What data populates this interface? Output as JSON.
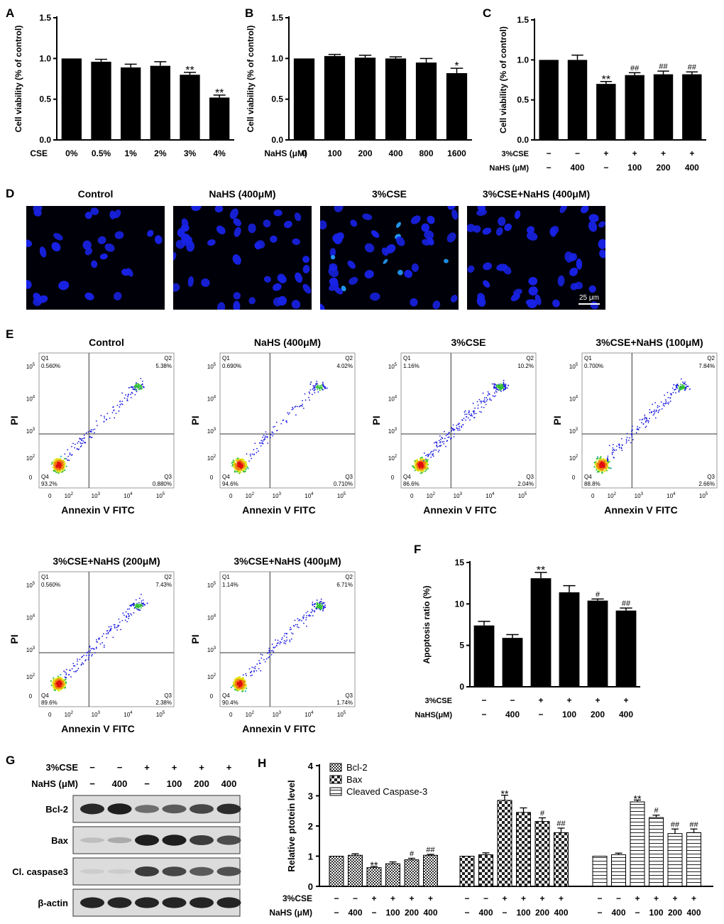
{
  "panel_labels": [
    "A",
    "B",
    "C",
    "D",
    "E",
    "F",
    "G",
    "H"
  ],
  "chart_data": [
    {
      "panel": "A",
      "type": "bar",
      "ylabel": "Cell viability (% of control)",
      "xrow_label": "CSE",
      "categories": [
        "0%",
        "0.5%",
        "1%",
        "2%",
        "3%",
        "4%"
      ],
      "values": [
        1.0,
        0.96,
        0.89,
        0.91,
        0.8,
        0.52
      ],
      "errors": [
        0.0,
        0.03,
        0.04,
        0.05,
        0.03,
        0.03
      ],
      "annotations": [
        "",
        "",
        "",
        "",
        "**",
        "**"
      ],
      "ylim": [
        0,
        1.5
      ],
      "yticks": [
        "0.0",
        "0.5",
        "1.0",
        "1.5"
      ]
    },
    {
      "panel": "B",
      "type": "bar",
      "ylabel": "Cell viability (% of control)",
      "xrow_label": "NaHS (μM)",
      "categories": [
        "0",
        "100",
        "200",
        "400",
        "800",
        "1600"
      ],
      "values": [
        1.0,
        1.03,
        1.01,
        1.0,
        0.95,
        0.82
      ],
      "errors": [
        0.0,
        0.02,
        0.03,
        0.02,
        0.05,
        0.06
      ],
      "annotations": [
        "",
        "",
        "",
        "",
        "",
        "*"
      ],
      "ylim": [
        0,
        1.5
      ],
      "yticks": [
        "0.0",
        "0.5",
        "1.0",
        "1.5"
      ]
    },
    {
      "panel": "C",
      "type": "bar",
      "ylabel": "Cell viability (% of control)",
      "rows": [
        {
          "label": "3%CSE",
          "values": [
            "−",
            "−",
            "+",
            "+",
            "+",
            "+"
          ]
        },
        {
          "label": "NaHS (μM)",
          "values": [
            "−",
            "400",
            "−",
            "100",
            "200",
            "400"
          ]
        }
      ],
      "values": [
        1.0,
        1.0,
        0.7,
        0.81,
        0.82,
        0.82
      ],
      "errors": [
        0.0,
        0.06,
        0.03,
        0.03,
        0.04,
        0.03
      ],
      "annotations": [
        "",
        "",
        "**",
        "##",
        "##",
        "##"
      ],
      "ylim": [
        0,
        1.5
      ],
      "yticks": [
        "0.0",
        "0.5",
        "1.0",
        "1.5"
      ]
    },
    {
      "panel": "F",
      "type": "bar",
      "ylabel": "Apoptosis ratio (%)",
      "rows": [
        {
          "label": "3%CSE",
          "values": [
            "−",
            "−",
            "+",
            "+",
            "+",
            "+"
          ]
        },
        {
          "label": "NaHS(μM)",
          "values": [
            "−",
            "400",
            "−",
            "100",
            "200",
            "400"
          ]
        }
      ],
      "values": [
        7.4,
        5.9,
        13.1,
        11.4,
        10.4,
        9.2
      ],
      "errors": [
        0.5,
        0.4,
        0.7,
        0.8,
        0.2,
        0.3
      ],
      "annotations": [
        "",
        "",
        "**",
        "",
        "#",
        "##"
      ],
      "ylim": [
        0,
        15
      ],
      "yticks": [
        "0",
        "5",
        "10",
        "15"
      ]
    },
    {
      "panel": "H",
      "type": "bar",
      "ylabel": "Relative ptotein level",
      "ylim": [
        0,
        4
      ],
      "yticks": [
        "0",
        "1",
        "2",
        "3",
        "4"
      ],
      "legend": [
        "Bcl-2",
        "Bax",
        "Cleaved Caspase-3"
      ],
      "rows": [
        {
          "label": "3%CSE",
          "values": [
            "−",
            "−",
            "+",
            "+",
            "+",
            "+",
            "−",
            "−",
            "+",
            "+",
            "+",
            "+",
            "−",
            "−",
            "+",
            "+",
            "+",
            "+"
          ]
        },
        {
          "label": "NaHS (μM)",
          "values": [
            "−",
            "400",
            "−",
            "100",
            "200",
            "400",
            "−",
            "400",
            "−",
            "100",
            "200",
            "400",
            "−",
            "400",
            "−",
            "100",
            "200",
            "400"
          ]
        }
      ],
      "series": [
        {
          "name": "Bcl-2",
          "values": [
            1.0,
            1.03,
            0.62,
            0.75,
            0.88,
            1.03
          ],
          "errors": [
            0.0,
            0.05,
            0.04,
            0.06,
            0.05,
            0.03
          ],
          "annotations": [
            "",
            "",
            "**",
            "",
            "#",
            "##"
          ]
        },
        {
          "name": "Bax",
          "values": [
            1.0,
            1.05,
            2.85,
            2.45,
            2.15,
            1.78
          ],
          "errors": [
            0.0,
            0.06,
            0.17,
            0.15,
            0.12,
            0.15
          ],
          "annotations": [
            "",
            "",
            "**",
            "",
            "#",
            "##"
          ]
        },
        {
          "name": "Cleaved Caspase-3",
          "values": [
            1.0,
            1.05,
            2.8,
            2.28,
            1.75,
            1.78
          ],
          "errors": [
            0.0,
            0.05,
            0.06,
            0.08,
            0.15,
            0.12
          ],
          "annotations": [
            "",
            "",
            "**",
            "#",
            "##",
            "##"
          ]
        }
      ]
    }
  ],
  "panel_D": {
    "titles": [
      "Control",
      "NaHS (400μM)",
      "3%CSE",
      "3%CSE+NaHS (400μM)"
    ],
    "scalebar": "25 μm"
  },
  "panel_E": {
    "titles": [
      "Control",
      "NaHS (400μM)",
      "3%CSE",
      "3%CSE+NaHS (100μM)",
      "3%CSE+NaHS (200μM)",
      "3%CSE+NaHS (400μM)"
    ],
    "xlabel": "Annexin V FITC",
    "ylabel": "PI",
    "quadrants": [
      {
        "q1": "0.560%",
        "q2": "5.38%",
        "q3": "0.880%",
        "q4": "93.2%"
      },
      {
        "q1": "0.690%",
        "q2": "4.02%",
        "q3": "0.710%",
        "q4": "94.6%"
      },
      {
        "q1": "1.16%",
        "q2": "10.2%",
        "q3": "2.04%",
        "q4": "86.6%"
      },
      {
        "q1": "0.700%",
        "q2": "7.84%",
        "q3": "2.66%",
        "q4": "88.8%"
      },
      {
        "q1": "0.560%",
        "q2": "7.43%",
        "q3": "2.38%",
        "q4": "89.6%"
      },
      {
        "q1": "1.14%",
        "q2": "6.71%",
        "q3": "1.74%",
        "q4": "90.4%"
      }
    ],
    "quadrant_names": [
      "Q1",
      "Q2",
      "Q3",
      "Q4"
    ],
    "axis_ticks": [
      "0",
      "10",
      "10",
      "10",
      "10"
    ],
    "axis_exps": [
      "",
      "2",
      "3",
      "4",
      "5"
    ]
  },
  "panel_G": {
    "rows": [
      {
        "label": "3%CSE",
        "values": [
          "−",
          "−",
          "+",
          "+",
          "+",
          "+"
        ]
      },
      {
        "label": "NaHS (μM)",
        "values": [
          "−",
          "400",
          "−",
          "100",
          "200",
          "400"
        ]
      }
    ],
    "blots": [
      "Bcl-2",
      "Bax",
      "Cl. caspase3",
      "β-actin"
    ],
    "intensity": [
      [
        0.9,
        0.95,
        0.55,
        0.65,
        0.75,
        0.88
      ],
      [
        0.15,
        0.25,
        0.95,
        0.95,
        0.8,
        0.72
      ],
      [
        0.08,
        0.08,
        0.8,
        0.75,
        0.65,
        0.7
      ],
      [
        0.92,
        0.92,
        0.92,
        0.92,
        0.92,
        0.92
      ]
    ]
  },
  "colors": {
    "bar": "#000000",
    "nucleus": "#1822e6",
    "bright_nucleus": "#22a0ff",
    "dot": "#1a1ae0"
  }
}
